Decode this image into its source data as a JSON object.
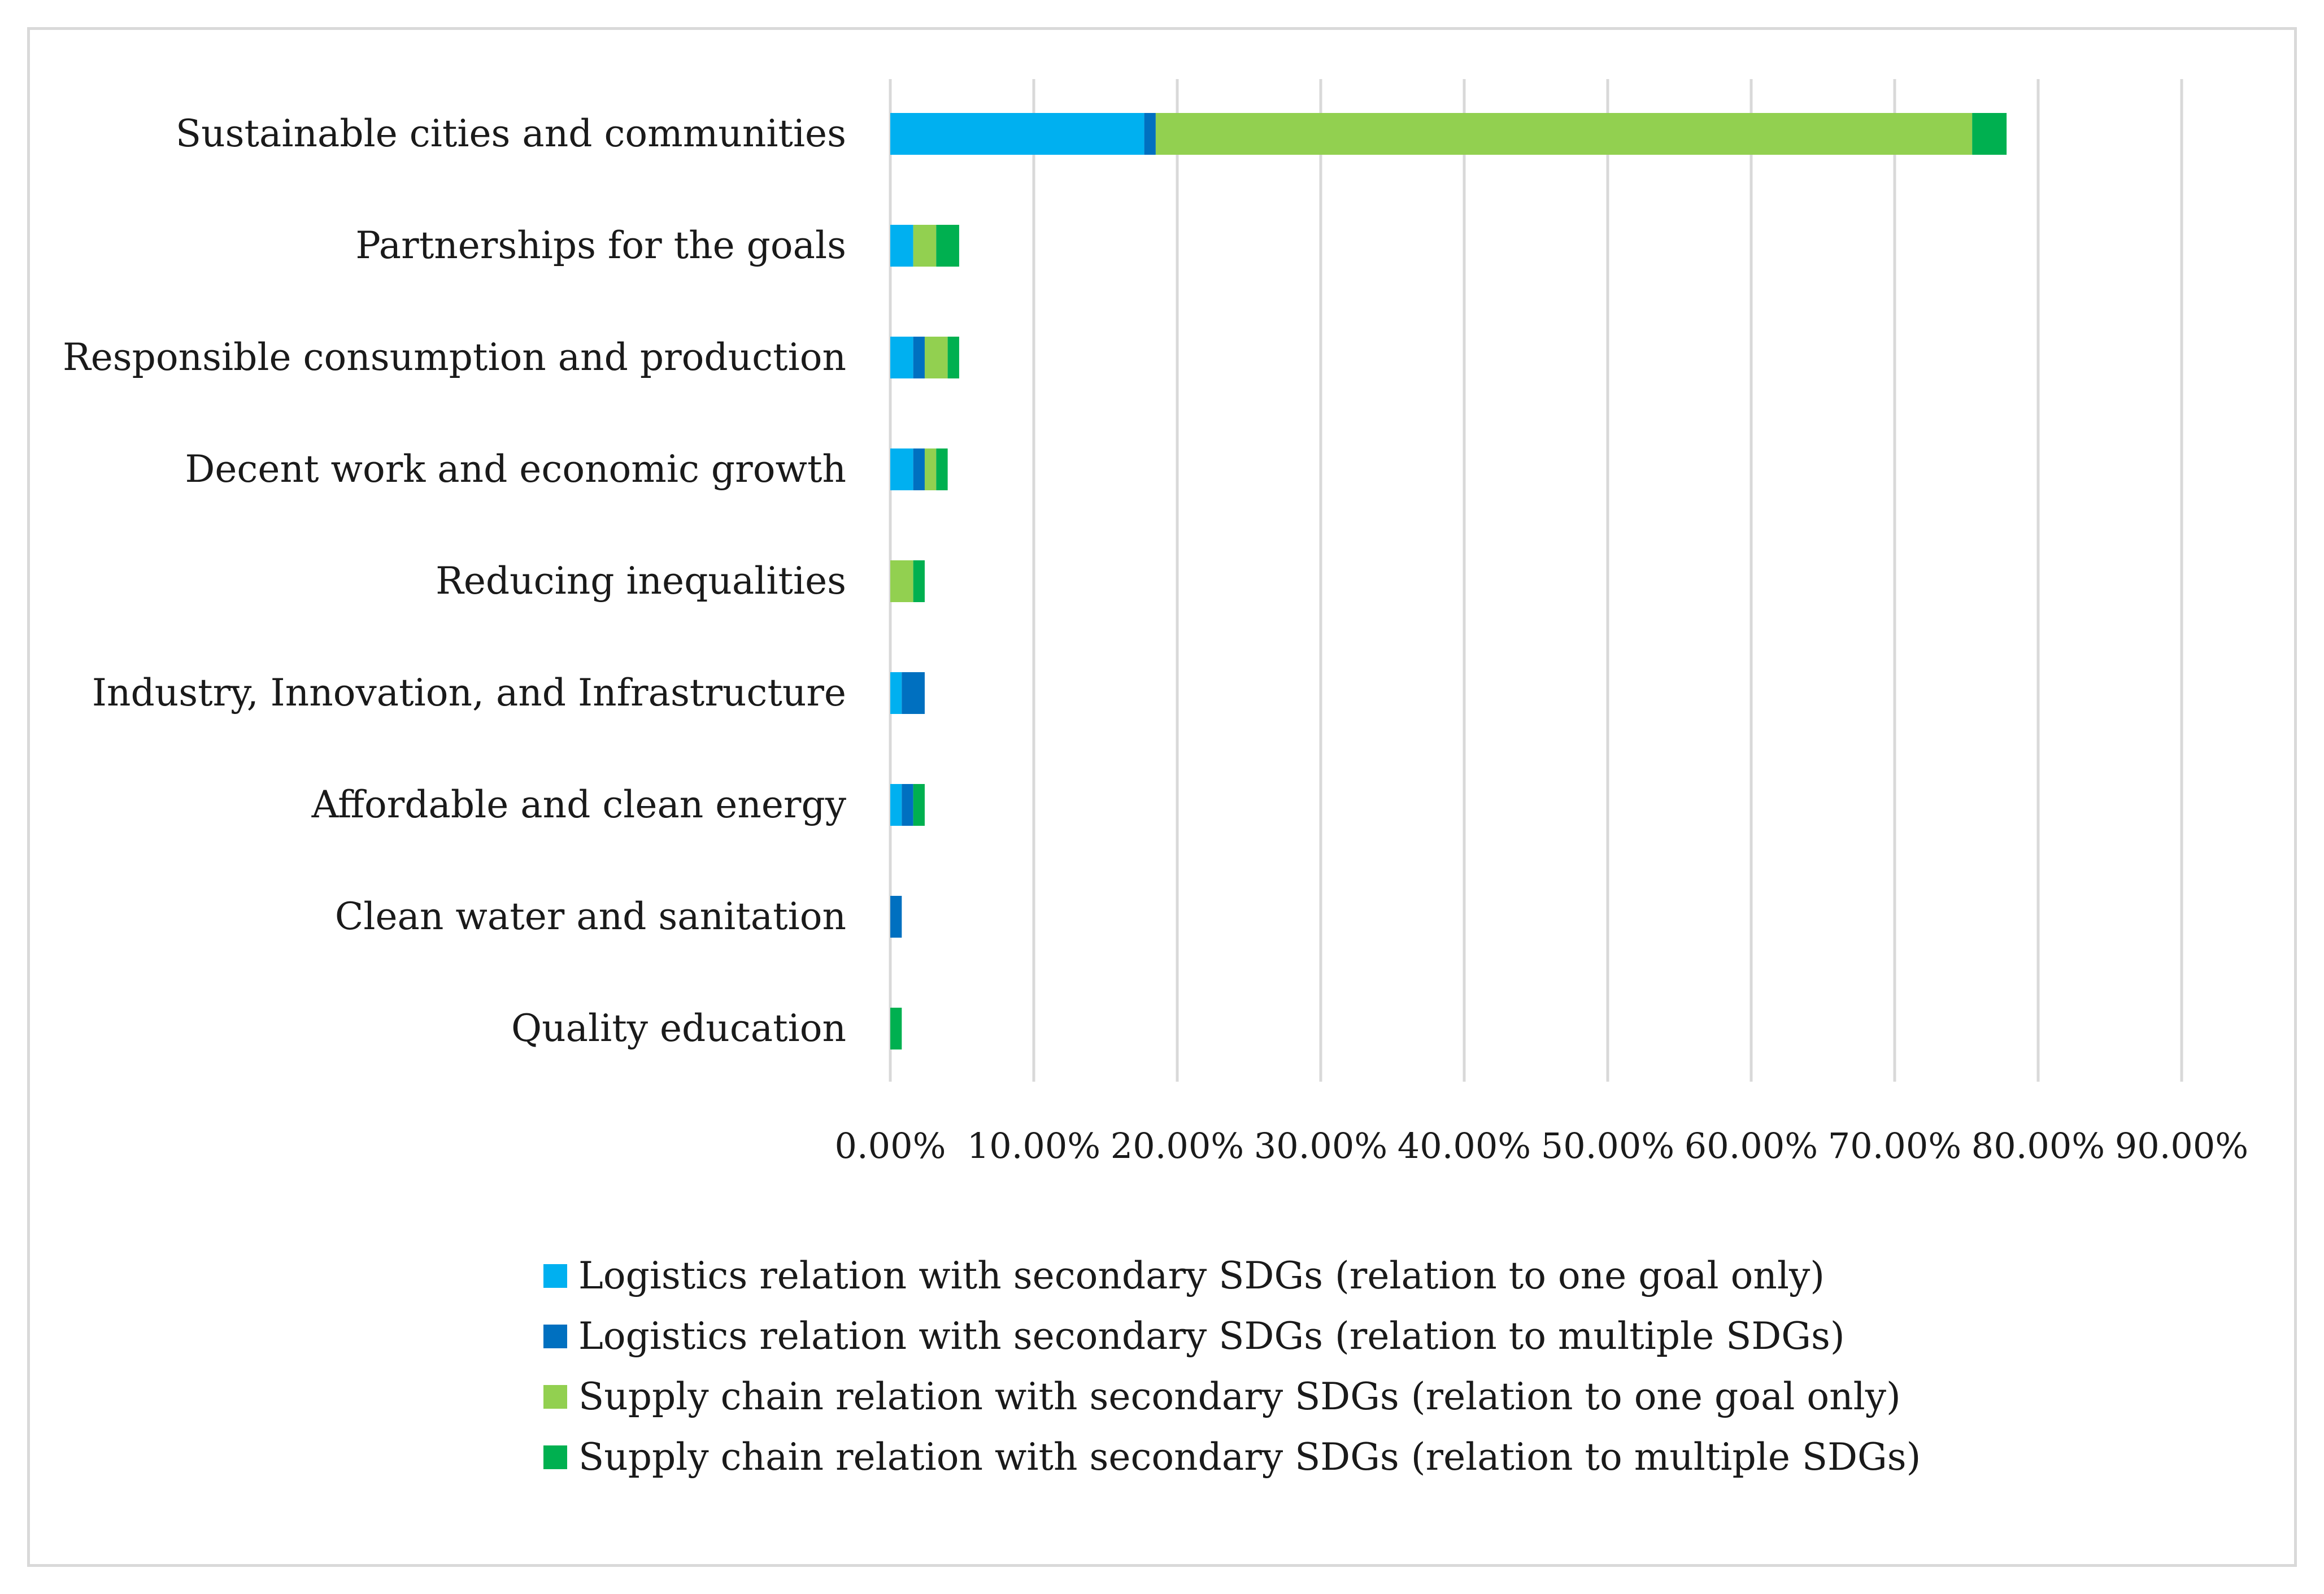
{
  "chart_data": {
    "type": "bar",
    "orientation": "horizontal",
    "stacked": true,
    "title": "",
    "xlabel": "",
    "ylabel": "",
    "categories": [
      "Sustainable cities and communities",
      "Partnerships for the goals",
      "Responsible consumption and production",
      "Decent work and economic growth",
      "Reducing inequalities",
      "Industry, Innovation, and Infrastructure",
      "Affordable and clean energy",
      "Clean water and sanitation",
      "Quality education"
    ],
    "series": [
      {
        "name": "Logistics relation with secondary SDGs (relation to one goal only)",
        "color": "#00b0f0",
        "values": [
          17.7,
          1.6,
          1.6,
          1.6,
          0,
          0.8,
          0.8,
          0,
          0
        ]
      },
      {
        "name": "Logistics relation with secondary SDGs (relation to multiple SDGs)",
        "color": "#0070c0",
        "values": [
          0.8,
          0,
          0.8,
          0.8,
          0,
          1.6,
          0.8,
          0.8,
          0
        ]
      },
      {
        "name": "Supply chain relation with secondary SDGs (relation to one goal only)",
        "color": "#92d050",
        "values": [
          56.9,
          1.6,
          1.6,
          0.8,
          1.6,
          0,
          0,
          0,
          0
        ]
      },
      {
        "name": "Supply chain relation with secondary SDGs (relation to multiple SDGs)",
        "color": "#00b050",
        "values": [
          2.4,
          1.6,
          0.8,
          0.8,
          0.8,
          0,
          0.8,
          0,
          0.8
        ]
      }
    ],
    "xlim": [
      0,
      90
    ],
    "x_ticks": [
      "0.00%",
      "10.00%",
      "20.00%",
      "30.00%",
      "40.00%",
      "50.00%",
      "60.00%",
      "70.00%",
      "80.00%",
      "90.00%"
    ],
    "grid": "vertical",
    "gridline_color": "#d9d9d9",
    "legend_position": "bottom"
  }
}
